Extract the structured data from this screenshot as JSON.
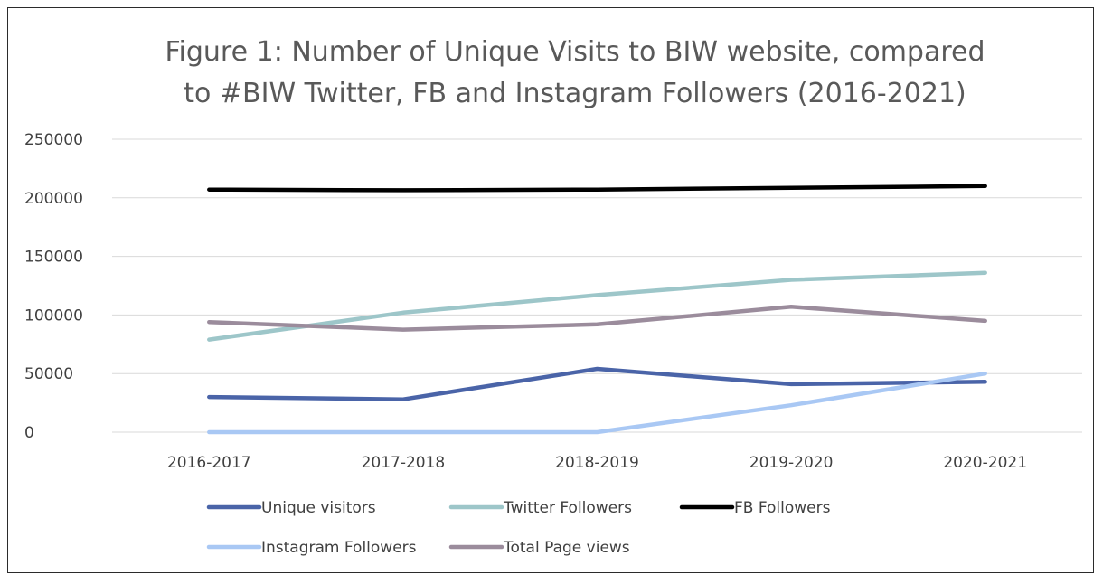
{
  "chart_data": {
    "type": "line",
    "title_lines": [
      "Figure 1: Number of Unique Visits to BIW website, compared",
      "to #BIW Twitter, FB and Instagram Followers (2016-2021)"
    ],
    "categories": [
      "2016-2017",
      "2017-2018",
      "2018-2019",
      "2019-2020",
      "2020-2021"
    ],
    "ylim": [
      0,
      250000
    ],
    "y_ticks": [
      0,
      50000,
      100000,
      150000,
      200000,
      250000
    ],
    "grid": true,
    "legend_position": "bottom",
    "series": [
      {
        "name": "Unique visitors",
        "color": "#4a64a8",
        "values": [
          30000,
          28000,
          54000,
          41000,
          43000
        ]
      },
      {
        "name": "Twitter Followers",
        "color": "#9dc6c9",
        "values": [
          79000,
          102000,
          117000,
          130000,
          136000
        ]
      },
      {
        "name": "FB Followers",
        "color": "#000000",
        "values": [
          207000,
          206500,
          207000,
          208500,
          210000
        ]
      },
      {
        "name": "Instagram Followers",
        "color": "#a9c8f4",
        "values": [
          0,
          0,
          0,
          23000,
          50000
        ]
      },
      {
        "name": "Total Page views",
        "color": "#9b8c9c",
        "values": [
          94000,
          87500,
          92000,
          107000,
          95000
        ]
      }
    ]
  }
}
